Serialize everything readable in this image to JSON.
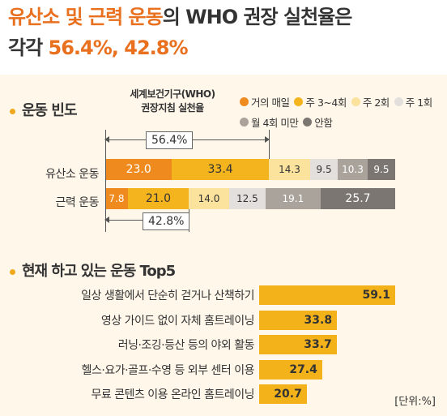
{
  "headline": {
    "line1_orange": "유산소 및 근력 운동",
    "line1_dark": "의 WHO 권장 실천율은",
    "line2_dark": "각각 ",
    "line2_orange": "56.4%, 42.8%"
  },
  "chart_data": [
    {
      "type": "bar",
      "title": "운동 빈도",
      "stacked": true,
      "orientation": "horizontal",
      "categories": [
        "유산소 운동",
        "근력 운동"
      ],
      "series": [
        {
          "name": "거의 매일",
          "color": "#ef8a1f",
          "values": [
            23.0,
            7.8
          ]
        },
        {
          "name": "주 3~4회",
          "color": "#f4b41d",
          "values": [
            33.4,
            21.0
          ]
        },
        {
          "name": "주 2회",
          "color": "#fbe29d",
          "values": [
            14.3,
            14.0
          ]
        },
        {
          "name": "주 1회",
          "color": "#e2dfdc",
          "values": [
            9.5,
            12.5
          ]
        },
        {
          "name": "월 4회 미만",
          "color": "#aaa39c",
          "values": [
            10.3,
            19.1
          ]
        },
        {
          "name": "안함",
          "color": "#7b7672",
          "values": [
            9.5,
            25.7
          ]
        }
      ],
      "value_labels": [
        [
          "23.0",
          "33.4",
          "14.3",
          "9.5",
          "10.3",
          "9.5"
        ],
        [
          "7.8",
          "21.0",
          "14.0",
          "12.5",
          "19.1",
          "25.7"
        ]
      ],
      "annotation_title": "세계보건기구(WHO)\n권장지침 실천율",
      "annotations": [
        "56.4%",
        "42.8%"
      ]
    },
    {
      "type": "bar",
      "title": "현재 하고 있는 운동 Top5",
      "orientation": "horizontal",
      "categories": [
        "일상 생활에서 단순히 걷거나 산책하기",
        "영상 가이드 없이 자체 홈트레이닝",
        "러닝·조깅·등산 등의 야외 활동",
        "헬스·요가·골프·수영 등 외부 센터 이용",
        "무료 콘텐츠 이용 온라인 홈트레이닝"
      ],
      "values": [
        59.1,
        33.8,
        33.7,
        27.4,
        20.7
      ],
      "value_labels": [
        "59.1",
        "33.8",
        "33.7",
        "27.4",
        "20.7"
      ],
      "color": "#f3b21a",
      "unit": "[단위:%]"
    }
  ]
}
